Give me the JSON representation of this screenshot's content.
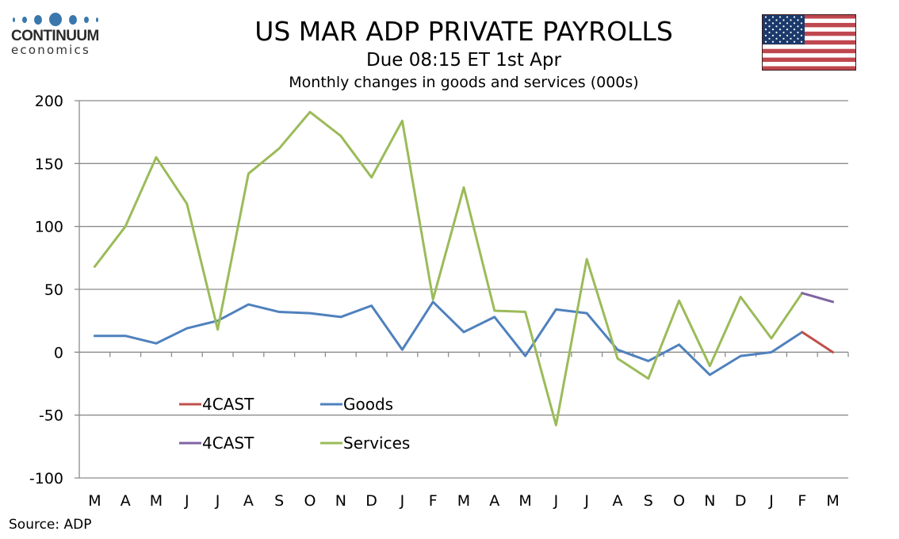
{
  "logo": {
    "name": "CONTINUUM",
    "sub": "economics",
    "color": "#3a77ad"
  },
  "header": {
    "title": "US MAR ADP PRIVATE PAYROLLS",
    "subtitle": "Due 08:15 ET 1st Apr",
    "subtitle2": "Monthly changes in goods and services (000s)"
  },
  "flag": {
    "icon": "us-flag-icon",
    "red": "#c0474f",
    "blue": "#1b3a6b"
  },
  "source": "Source: ADP",
  "chart_data": {
    "type": "line",
    "title": "US MAR ADP PRIVATE PAYROLLS",
    "subtitle": "Monthly changes in goods and services (000s)",
    "xlabel": "",
    "ylabel": "",
    "ylim": [
      -100,
      200
    ],
    "yticks": [
      -100,
      -50,
      0,
      50,
      100,
      150,
      200
    ],
    "grid": true,
    "categories": [
      "M",
      "A",
      "M",
      "J",
      "J",
      "A",
      "S",
      "O",
      "N",
      "D",
      "J",
      "F",
      "M",
      "A",
      "M",
      "J",
      "J",
      "A",
      "S",
      "O",
      "N",
      "D",
      "J",
      "F",
      "M"
    ],
    "series": [
      {
        "name": "4CAST",
        "color": "#c0504d",
        "legend_row": 0,
        "legend_col": 0,
        "values": [
          null,
          null,
          null,
          null,
          null,
          null,
          null,
          null,
          null,
          null,
          null,
          null,
          null,
          null,
          null,
          null,
          null,
          null,
          null,
          null,
          null,
          null,
          null,
          16,
          0
        ]
      },
      {
        "name": "Goods",
        "color": "#4f81bd",
        "legend_row": 0,
        "legend_col": 1,
        "values": [
          13,
          13,
          7,
          19,
          25,
          38,
          32,
          31,
          28,
          37,
          2,
          40,
          16,
          28,
          -3,
          34,
          31,
          2,
          -7,
          6,
          -18,
          -3,
          0,
          16,
          null
        ]
      },
      {
        "name": "4CAST",
        "color": "#8064a2",
        "legend_row": 1,
        "legend_col": 0,
        "values": [
          null,
          null,
          null,
          null,
          null,
          null,
          null,
          null,
          null,
          null,
          null,
          null,
          null,
          null,
          null,
          null,
          null,
          null,
          null,
          null,
          null,
          null,
          null,
          47,
          40
        ]
      },
      {
        "name": "Services",
        "color": "#9bbb59",
        "legend_row": 1,
        "legend_col": 1,
        "values": [
          68,
          100,
          155,
          118,
          18,
          142,
          162,
          191,
          172,
          139,
          184,
          42,
          131,
          33,
          32,
          -58,
          74,
          -5,
          -21,
          41,
          -11,
          44,
          11,
          47,
          null
        ]
      }
    ],
    "legend_position": "bottom-left-inside"
  }
}
